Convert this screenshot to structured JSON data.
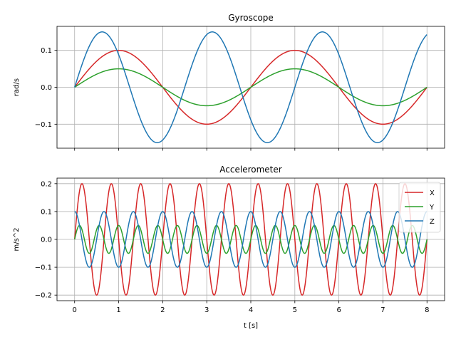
{
  "chart_data": [
    {
      "type": "line",
      "title": "Gyroscope",
      "xlabel": "",
      "ylabel": "rad/s",
      "xlim": [
        -0.4,
        8.4
      ],
      "ylim": [
        -0.165,
        0.165
      ],
      "xticks": [
        0,
        1,
        2,
        3,
        4,
        5,
        6,
        7,
        8
      ],
      "xtick_labels_visible": false,
      "yticks": [
        -0.1,
        0.0,
        0.1
      ],
      "ytick_labels": [
        "−0.1",
        "0.0",
        "0.1"
      ],
      "grid": true,
      "legend": null,
      "x_range": [
        0,
        8
      ],
      "series": [
        {
          "label": "X",
          "color": "#d62728",
          "amplitude": 0.1,
          "frequency_hz": 0.25,
          "phase_deg": 0,
          "waveform": "sine"
        },
        {
          "label": "Y",
          "color": "#2ca02c",
          "amplitude": 0.05,
          "frequency_hz": 0.25,
          "phase_deg": 0,
          "waveform": "sine"
        },
        {
          "label": "Z",
          "color": "#1f77b4",
          "amplitude": 0.15,
          "frequency_hz": 0.4,
          "phase_deg": 0,
          "waveform": "sine"
        }
      ]
    },
    {
      "type": "line",
      "title": "Accelerometer",
      "xlabel": "t [s]",
      "ylabel": "m/s^2",
      "xlim": [
        -0.4,
        8.4
      ],
      "ylim": [
        -0.22,
        0.22
      ],
      "xticks": [
        0,
        1,
        2,
        3,
        4,
        5,
        6,
        7,
        8
      ],
      "xtick_labels_visible": true,
      "xtick_labels": [
        "0",
        "1",
        "2",
        "3",
        "4",
        "5",
        "6",
        "7",
        "8"
      ],
      "yticks": [
        -0.2,
        -0.1,
        0.0,
        0.1,
        0.2
      ],
      "ytick_labels": [
        "−0.2",
        "−0.1",
        "0.0",
        "0.1",
        "0.2"
      ],
      "grid": true,
      "legend": "top-right",
      "x_range": [
        0,
        8
      ],
      "series": [
        {
          "label": "X",
          "color": "#d62728",
          "amplitude": 0.2,
          "frequency_hz": 1.5,
          "phase_deg": 0,
          "waveform": "sine"
        },
        {
          "label": "Y",
          "color": "#2ca02c",
          "amplitude": 0.05,
          "frequency_hz": 2.25,
          "phase_deg": 0,
          "waveform": "sine"
        },
        {
          "label": "Z",
          "color": "#1f77b4",
          "amplitude": 0.1,
          "frequency_hz": 1.5,
          "phase_deg": 90,
          "waveform": "sine"
        }
      ]
    }
  ]
}
